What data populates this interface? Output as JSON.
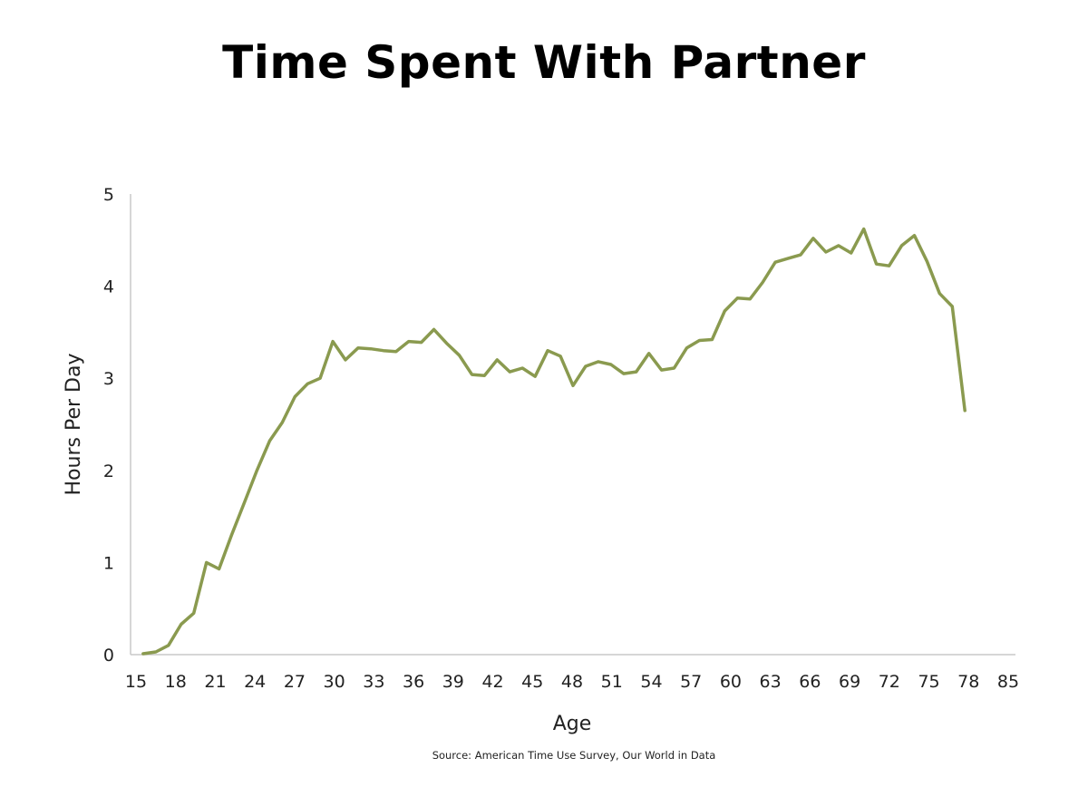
{
  "page": {
    "title": "Time Spent With Partner",
    "source": "Source: American Time Use Survey, Our World in Data"
  },
  "chart_data": {
    "type": "line",
    "title": "Time Spent With Partner",
    "xlabel": "Age",
    "ylabel": "Hours Per Day",
    "xlim": [
      15,
      85
    ],
    "ylim": [
      0,
      5
    ],
    "x_ticks": [
      "15",
      "18",
      "21",
      "24",
      "27",
      "30",
      "33",
      "36",
      "39",
      "42",
      "45",
      "48",
      "51",
      "54",
      "57",
      "60",
      "63",
      "66",
      "69",
      "72",
      "75",
      "78",
      "85"
    ],
    "y_ticks": [
      "0",
      "1",
      "2",
      "3",
      "4",
      "5"
    ],
    "grid": false,
    "line_color": "#8a9a4f",
    "series": [
      {
        "x": [
          16,
          17,
          18,
          19,
          20,
          21,
          22,
          23,
          24,
          25,
          26,
          27,
          28,
          29,
          30,
          31,
          32,
          33,
          34,
          35,
          36,
          37,
          38,
          39,
          40,
          41,
          42,
          43,
          44,
          45,
          46,
          47,
          48,
          49,
          50,
          51,
          52,
          53,
          54,
          55,
          56,
          57,
          58,
          59,
          60,
          61,
          62,
          63,
          64,
          65,
          66,
          67,
          68,
          69,
          70,
          71,
          72,
          73,
          74,
          75,
          76,
          77,
          78,
          79,
          80,
          81
        ],
        "values": [
          0.01,
          0.03,
          0.1,
          0.33,
          0.45,
          1.0,
          0.93,
          1.3,
          1.65,
          2.0,
          2.32,
          2.52,
          2.8,
          2.94,
          3.0,
          3.4,
          3.2,
          3.33,
          3.32,
          3.3,
          3.29,
          3.4,
          3.39,
          3.53,
          3.38,
          3.25,
          3.04,
          3.03,
          3.2,
          3.07,
          3.11,
          3.02,
          3.3,
          3.24,
          2.92,
          3.13,
          3.18,
          3.15,
          3.05,
          3.07,
          3.27,
          3.09,
          3.11,
          3.33,
          3.41,
          3.42,
          3.73,
          3.87,
          3.86,
          4.04,
          4.26,
          4.3,
          4.34,
          4.52,
          4.37,
          4.44,
          4.36,
          4.62,
          4.24,
          4.22,
          4.44,
          4.55,
          4.27,
          3.92,
          3.78,
          2.65
        ]
      }
    ]
  }
}
